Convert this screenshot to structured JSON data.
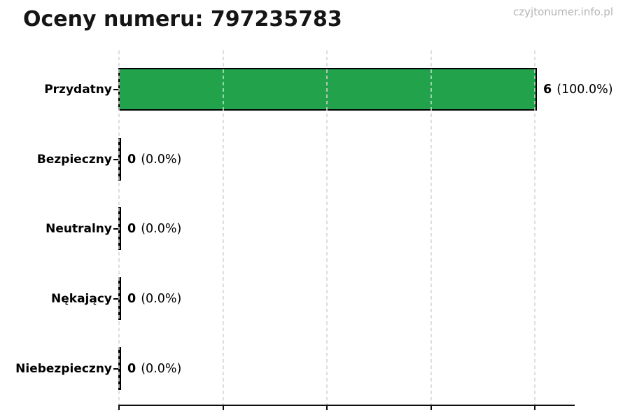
{
  "page": {
    "watermark": "czyjtonumer.info.pl"
  },
  "chart_data": {
    "type": "bar",
    "orientation": "horizontal",
    "title": "Oceny numeru: 797235783",
    "categories": [
      "Przydatny",
      "Bezpieczny",
      "Neutralny",
      "Nękający",
      "Niebezpieczny"
    ],
    "values": [
      6,
      0,
      0,
      0,
      0
    ],
    "percentages": [
      100.0,
      0.0,
      0.0,
      0.0,
      0.0
    ],
    "xlim": [
      0,
      6.6
    ],
    "x_ticks": [
      0,
      1.5,
      3,
      4.5,
      6
    ],
    "x_tick_labels_visible": false,
    "grid": "vertical-dashed",
    "legend": "none",
    "bar_color": "#23a24c",
    "bar_edge_color": "#000000"
  },
  "rows": [
    {
      "label": "Przydatny",
      "count": "6",
      "pct": "(100.0%)"
    },
    {
      "label": "Bezpieczny",
      "count": "0",
      "pct": "(0.0%)"
    },
    {
      "label": "Neutralny",
      "count": "0",
      "pct": "(0.0%)"
    },
    {
      "label": "Nękający",
      "count": "0",
      "pct": "(0.0%)"
    },
    {
      "label": "Niebezpieczny",
      "count": "0",
      "pct": "(0.0%)"
    }
  ]
}
